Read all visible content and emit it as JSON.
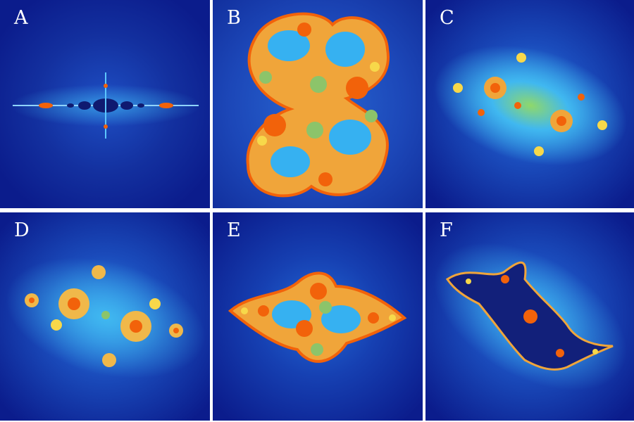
{
  "panels": [
    {
      "label": "A"
    },
    {
      "label": "B"
    },
    {
      "label": "C"
    },
    {
      "label": "D"
    },
    {
      "label": "E"
    },
    {
      "label": "F"
    }
  ],
  "colors": {
    "background_deep": "#0b1c8c",
    "glow_light": "#36b1f1",
    "fractal_orange": "#f2620a",
    "fractal_yellow": "#f7d84a",
    "fractal_green": "#8cc46a",
    "fractal_navy": "#12207a",
    "separator": "#ffffff"
  }
}
